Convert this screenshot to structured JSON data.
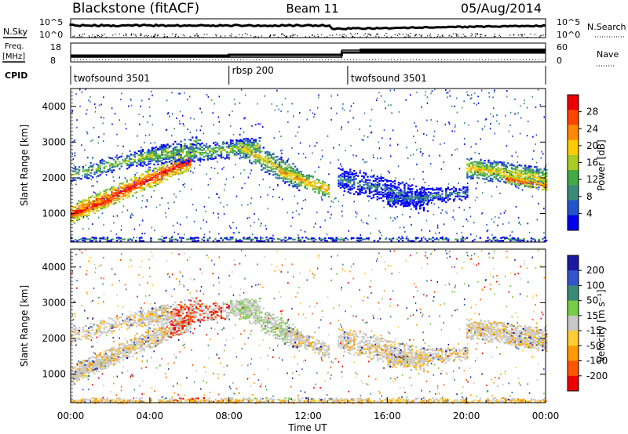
{
  "header": {
    "station": "Blackstone (fitACF)",
    "beam": "Beam 11",
    "date": "05/Aug/2014"
  },
  "panels": {
    "nsky_label": "N.Sky",
    "nsky_ticks": [
      "10^5",
      "10^0"
    ],
    "nsearch_label": "N.Search",
    "nsearch_ticks": [
      "10^5",
      "10^0"
    ],
    "freq_label_1": "Freq.",
    "freq_label_2": "[MHz]",
    "freq_ticks": [
      "18",
      "8"
    ],
    "nave_label": "Nave",
    "nave_ticks": [
      "60",
      "0"
    ],
    "cpid_label": "CPID",
    "cpid_segments": [
      {
        "label": "twofsound 3501",
        "start_hour": 0
      },
      {
        "label": "rbsp 200",
        "start_hour": 8
      },
      {
        "label": "twofsound 3501",
        "start_hour": 14
      }
    ]
  },
  "colors": {
    "power_scale": [
      "#0000ee",
      "#2255cc",
      "#3a8a7a",
      "#44aa44",
      "#aacc22",
      "#ffcc00",
      "#ff8800",
      "#ff4400",
      "#ee0000"
    ],
    "velocity_scale": [
      "#1a1aa0",
      "#3355cc",
      "#3a8a7a",
      "#77cc44",
      "#c8c8c8",
      "#ffcc33",
      "#ff9900",
      "#ff5500",
      "#ee0000"
    ]
  },
  "chart_data": [
    {
      "type": "heatmap",
      "name_tag": "power",
      "ylabel": "Slant Range [km]",
      "yticks": [
        "1000",
        "2000",
        "3000",
        "4000"
      ],
      "ylim": [
        200,
        4500
      ],
      "xlim": [
        0,
        24
      ],
      "colorbar_label": "Power [dB]",
      "colorbar_ticks": [
        "4",
        "8",
        "12",
        "16",
        "20",
        "24",
        "28"
      ]
    },
    {
      "type": "heatmap",
      "name_tag": "velocity",
      "ylabel": "Slant Range [km]",
      "yticks": [
        "1000",
        "2000",
        "3000",
        "4000"
      ],
      "ylim": [
        200,
        4500
      ],
      "xlim": [
        0,
        24
      ],
      "xlabel": "Time UT",
      "xticks": [
        "00:00",
        "04:00",
        "08:00",
        "12:00",
        "16:00",
        "20:00",
        "00:00"
      ],
      "colorbar_label": "Velocity [m s⁻¹]",
      "colorbar_ticks": [
        "200",
        "100",
        "50",
        "15",
        "-15",
        "-50",
        "-100",
        "-200"
      ]
    }
  ]
}
